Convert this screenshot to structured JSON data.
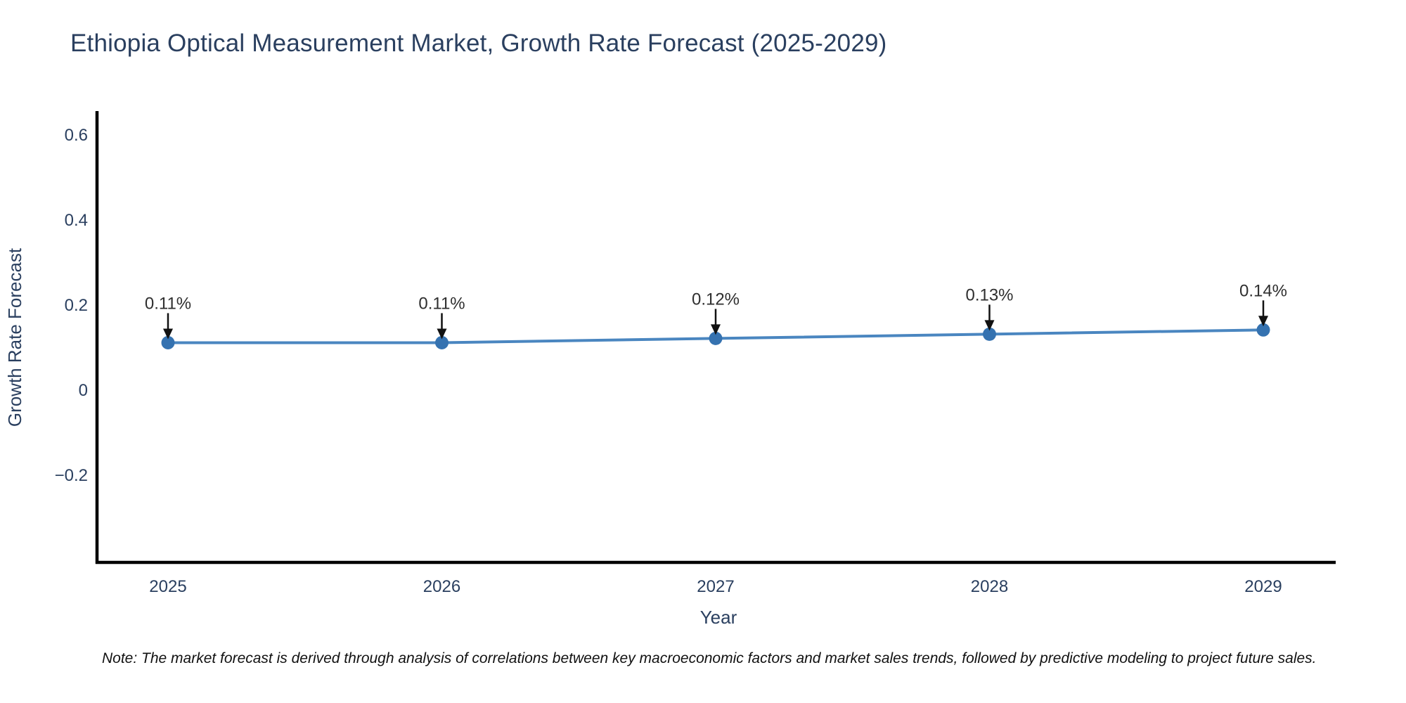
{
  "chart": {
    "title": "Ethiopia Optical Measurement Market, Growth Rate Forecast (2025-2029)"
  },
  "chart_data": {
    "type": "line",
    "x": [
      2025,
      2026,
      2027,
      2028,
      2029
    ],
    "series": [
      {
        "name": "Growth Rate Forecast",
        "values": [
          0.11,
          0.11,
          0.12,
          0.13,
          0.14
        ]
      }
    ],
    "point_labels": [
      "0.11%",
      "0.11%",
      "0.12%",
      "0.13%",
      "0.14%"
    ],
    "title": "Ethiopia Optical Measurement Market, Growth Rate Forecast (2025-2029)",
    "xlabel": "Year",
    "ylabel": "Growth Rate Forecast",
    "xtick_labels": [
      "2025",
      "2026",
      "2027",
      "2028",
      "2029"
    ],
    "yticks": [
      0.6,
      0.4,
      0.2,
      0,
      -0.2
    ],
    "ytick_labels": [
      "0.6",
      "0.4",
      "0.2",
      "0",
      "−0.2"
    ],
    "ylim": [
      -0.41,
      0.64
    ],
    "grid": false,
    "legend_position": "none",
    "colors": {
      "line": "#4a86c0",
      "marker": "#3572b0",
      "axis_line": "#000000",
      "tick_text": "#2a3f5f",
      "axis_title_text": "#2a3f5f",
      "point_label_text": "#2f2f2f",
      "annotation_arrow": "#111111"
    }
  },
  "note": {
    "text": "Note: The market forecast is derived through analysis of correlations between key macroeconomic factors and market sales trends, followed by predictive modeling to project future sales."
  }
}
